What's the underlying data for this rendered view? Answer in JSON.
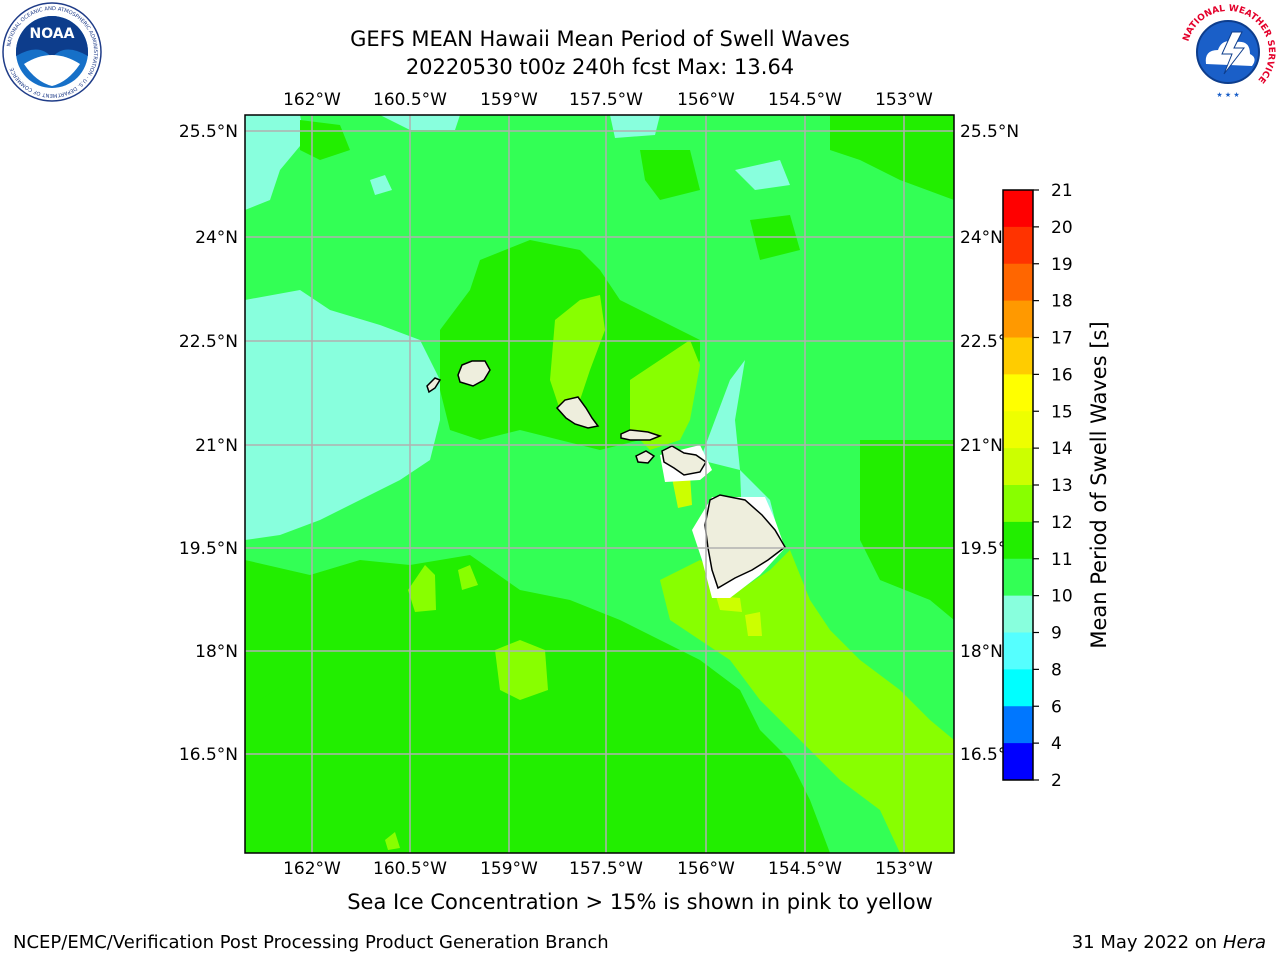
{
  "header": {
    "title_line1": "GEFS MEAN Hawaii Mean Period of Swell Waves",
    "title_line2": "20220530 t00z 240h fcst   Max: 13.64"
  },
  "logos": {
    "left": {
      "name": "noaa-logo",
      "text": "NOAA",
      "ring_text": "NATIONAL OCEANIC AND ATMOSPHERIC ADMINISTRATION · U.S. DEPARTMENT OF COMMERCE"
    },
    "right": {
      "name": "nws-logo",
      "ring_text": "NATIONAL WEATHER SERVICE"
    }
  },
  "map": {
    "lon_ticks": [
      "162°W",
      "160.5°W",
      "159°W",
      "157.5°W",
      "156°W",
      "154.5°W",
      "153°W"
    ],
    "lat_ticks": [
      "25.5°N",
      "24°N",
      "22.5°N",
      "21°N",
      "19.5°N",
      "18°N",
      "16.5°N"
    ],
    "colors": {
      "ocean_base": "#33ff55",
      "band_9_10": "#88ffdd",
      "band_11_12": "#22ee00",
      "band_12_13": "#88ff00",
      "band_13_14": "#ccff00",
      "land": "#eeeedd",
      "grid": "#b0b0b0"
    }
  },
  "colorbar": {
    "label": "Mean Period of Swell Waves [s]",
    "ticks": [
      "21",
      "20",
      "19",
      "18",
      "17",
      "16",
      "15",
      "14",
      "13",
      "12",
      "11",
      "10",
      "9",
      "8",
      "6",
      "4",
      "2"
    ],
    "colors": [
      "#ff0000",
      "#ff3300",
      "#ff6600",
      "#ff9900",
      "#ffcc00",
      "#ffff00",
      "#eeff00",
      "#ccff00",
      "#88ff00",
      "#22ee00",
      "#33ff55",
      "#88ffdd",
      "#55ffff",
      "#00ffff",
      "#0077ff",
      "#0000ff"
    ]
  },
  "note": "Sea Ice Concentration > 15% is shown in pink to yellow",
  "footer": {
    "left": "NCEP/EMC/Verification Post Processing Product Generation Branch",
    "right_date": "31 May 2022 on",
    "right_host": "Hera"
  }
}
